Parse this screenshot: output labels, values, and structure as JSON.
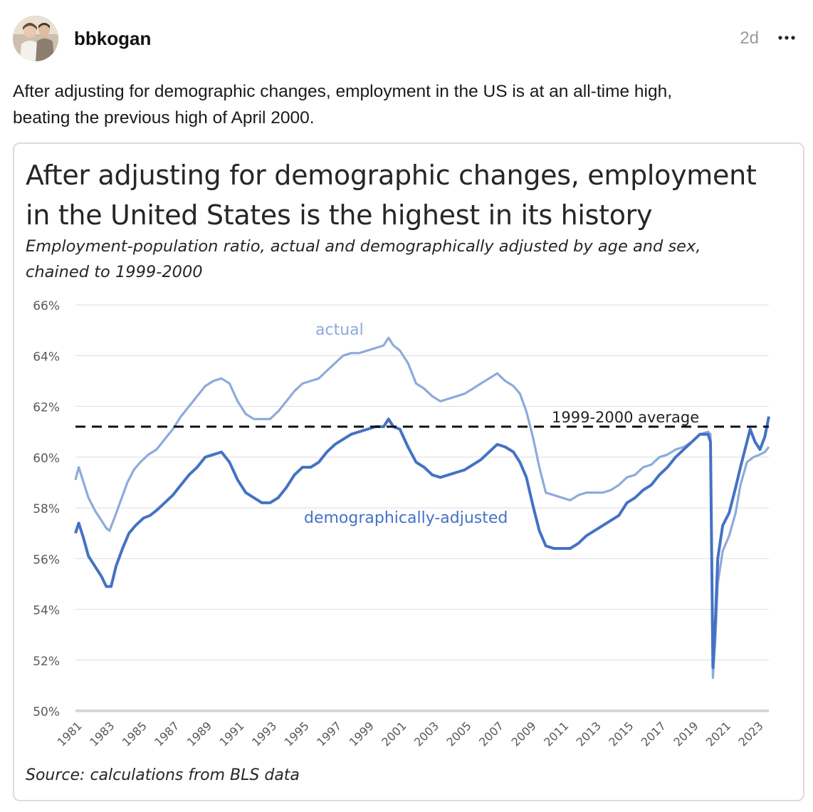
{
  "post": {
    "username": "bbkogan",
    "timestamp": "2d",
    "avatar_icon": "user-avatar-photo",
    "more_icon": "ellipsis-icon",
    "text_line1": "After adjusting for demographic changes, employment in the US is at an all-time high,",
    "text_line2": "beating the previous high of April 2000."
  },
  "chart_data": {
    "type": "line",
    "title_line1": "After adjusting for demographic changes, employment",
    "title_line2": "in the United States is the highest in its history",
    "subtitle_line1": "Employment-population ratio, actual and demographically adjusted by age and sex,",
    "subtitle_line2": "chained to 1999-2000",
    "source": "Source: calculations from BLS data",
    "ylim": [
      50,
      66
    ],
    "xlim": [
      1981,
      2023.75
    ],
    "y_ticks": [
      "66%",
      "64%",
      "62%",
      "60%",
      "58%",
      "56%",
      "54%",
      "52%",
      "50%"
    ],
    "y_tick_values": [
      66,
      64,
      62,
      60,
      58,
      56,
      54,
      52,
      50
    ],
    "x_ticks": [
      "1981",
      "1983",
      "1985",
      "1987",
      "1989",
      "1991",
      "1993",
      "1995",
      "1997",
      "1999",
      "2001",
      "2003",
      "2005",
      "2007",
      "2009",
      "2011",
      "2013",
      "2015",
      "2017",
      "2019",
      "2021",
      "2023"
    ],
    "grid": true,
    "reference_line": {
      "label": "1999-2000 average",
      "value": 61.2
    },
    "series": [
      {
        "name": "actual",
        "color": "#8eaadb",
        "points": [
          [
            1981.0,
            59.1
          ],
          [
            1981.2,
            59.6
          ],
          [
            1981.5,
            59.0
          ],
          [
            1981.8,
            58.4
          ],
          [
            1982.2,
            57.9
          ],
          [
            1982.6,
            57.5
          ],
          [
            1982.9,
            57.2
          ],
          [
            1983.1,
            57.1
          ],
          [
            1983.4,
            57.6
          ],
          [
            1983.8,
            58.3
          ],
          [
            1984.2,
            59.0
          ],
          [
            1984.6,
            59.5
          ],
          [
            1985.0,
            59.8
          ],
          [
            1985.5,
            60.1
          ],
          [
            1986.0,
            60.3
          ],
          [
            1986.5,
            60.7
          ],
          [
            1987.0,
            61.1
          ],
          [
            1987.5,
            61.6
          ],
          [
            1988.0,
            62.0
          ],
          [
            1988.5,
            62.4
          ],
          [
            1989.0,
            62.8
          ],
          [
            1989.5,
            63.0
          ],
          [
            1990.0,
            63.1
          ],
          [
            1990.5,
            62.9
          ],
          [
            1991.0,
            62.2
          ],
          [
            1991.5,
            61.7
          ],
          [
            1992.0,
            61.5
          ],
          [
            1992.5,
            61.5
          ],
          [
            1993.0,
            61.5
          ],
          [
            1993.5,
            61.8
          ],
          [
            1994.0,
            62.2
          ],
          [
            1994.5,
            62.6
          ],
          [
            1995.0,
            62.9
          ],
          [
            1995.5,
            63.0
          ],
          [
            1996.0,
            63.1
          ],
          [
            1996.5,
            63.4
          ],
          [
            1997.0,
            63.7
          ],
          [
            1997.5,
            64.0
          ],
          [
            1998.0,
            64.1
          ],
          [
            1998.5,
            64.1
          ],
          [
            1999.0,
            64.2
          ],
          [
            1999.5,
            64.3
          ],
          [
            2000.0,
            64.4
          ],
          [
            2000.3,
            64.7
          ],
          [
            2000.6,
            64.4
          ],
          [
            2001.0,
            64.2
          ],
          [
            2001.5,
            63.7
          ],
          [
            2002.0,
            62.9
          ],
          [
            2002.5,
            62.7
          ],
          [
            2003.0,
            62.4
          ],
          [
            2003.5,
            62.2
          ],
          [
            2004.0,
            62.3
          ],
          [
            2004.5,
            62.4
          ],
          [
            2005.0,
            62.5
          ],
          [
            2005.5,
            62.7
          ],
          [
            2006.0,
            62.9
          ],
          [
            2006.5,
            63.1
          ],
          [
            2007.0,
            63.3
          ],
          [
            2007.5,
            63.0
          ],
          [
            2008.0,
            62.8
          ],
          [
            2008.4,
            62.5
          ],
          [
            2008.8,
            61.8
          ],
          [
            2009.2,
            60.8
          ],
          [
            2009.6,
            59.6
          ],
          [
            2010.0,
            58.6
          ],
          [
            2010.5,
            58.5
          ],
          [
            2011.0,
            58.4
          ],
          [
            2011.5,
            58.3
          ],
          [
            2012.0,
            58.5
          ],
          [
            2012.5,
            58.6
          ],
          [
            2013.0,
            58.6
          ],
          [
            2013.5,
            58.6
          ],
          [
            2014.0,
            58.7
          ],
          [
            2014.5,
            58.9
          ],
          [
            2015.0,
            59.2
          ],
          [
            2015.5,
            59.3
          ],
          [
            2016.0,
            59.6
          ],
          [
            2016.5,
            59.7
          ],
          [
            2017.0,
            60.0
          ],
          [
            2017.5,
            60.1
          ],
          [
            2018.0,
            60.3
          ],
          [
            2018.5,
            60.4
          ],
          [
            2019.0,
            60.6
          ],
          [
            2019.5,
            60.9
          ],
          [
            2020.0,
            61.0
          ],
          [
            2020.15,
            60.9
          ],
          [
            2020.3,
            51.3
          ],
          [
            2020.45,
            52.8
          ],
          [
            2020.6,
            55.0
          ],
          [
            2020.9,
            56.3
          ],
          [
            2021.3,
            56.9
          ],
          [
            2021.7,
            57.8
          ],
          [
            2022.0,
            58.9
          ],
          [
            2022.4,
            59.8
          ],
          [
            2022.8,
            60.0
          ],
          [
            2023.2,
            60.1
          ],
          [
            2023.5,
            60.2
          ],
          [
            2023.75,
            60.4
          ]
        ]
      },
      {
        "name": "demographically-adjusted",
        "color": "#4472c4",
        "points": [
          [
            1981.0,
            57.0
          ],
          [
            1981.2,
            57.4
          ],
          [
            1981.5,
            56.8
          ],
          [
            1981.8,
            56.1
          ],
          [
            1982.2,
            55.7
          ],
          [
            1982.6,
            55.3
          ],
          [
            1982.9,
            54.9
          ],
          [
            1983.2,
            54.9
          ],
          [
            1983.5,
            55.7
          ],
          [
            1983.9,
            56.4
          ],
          [
            1984.3,
            57.0
          ],
          [
            1984.7,
            57.3
          ],
          [
            1985.2,
            57.6
          ],
          [
            1985.6,
            57.7
          ],
          [
            1986.0,
            57.9
          ],
          [
            1986.5,
            58.2
          ],
          [
            1987.0,
            58.5
          ],
          [
            1987.5,
            58.9
          ],
          [
            1988.0,
            59.3
          ],
          [
            1988.5,
            59.6
          ],
          [
            1989.0,
            60.0
          ],
          [
            1989.5,
            60.1
          ],
          [
            1990.0,
            60.2
          ],
          [
            1990.5,
            59.8
          ],
          [
            1991.0,
            59.1
          ],
          [
            1991.5,
            58.6
          ],
          [
            1992.0,
            58.4
          ],
          [
            1992.5,
            58.2
          ],
          [
            1993.0,
            58.2
          ],
          [
            1993.5,
            58.4
          ],
          [
            1994.0,
            58.8
          ],
          [
            1994.5,
            59.3
          ],
          [
            1995.0,
            59.6
          ],
          [
            1995.5,
            59.6
          ],
          [
            1996.0,
            59.8
          ],
          [
            1996.5,
            60.2
          ],
          [
            1997.0,
            60.5
          ],
          [
            1997.5,
            60.7
          ],
          [
            1998.0,
            60.9
          ],
          [
            1998.5,
            61.0
          ],
          [
            1999.0,
            61.1
          ],
          [
            1999.5,
            61.2
          ],
          [
            2000.0,
            61.2
          ],
          [
            2000.3,
            61.5
          ],
          [
            2000.6,
            61.2
          ],
          [
            2001.0,
            61.1
          ],
          [
            2001.5,
            60.4
          ],
          [
            2002.0,
            59.8
          ],
          [
            2002.5,
            59.6
          ],
          [
            2003.0,
            59.3
          ],
          [
            2003.5,
            59.2
          ],
          [
            2004.0,
            59.3
          ],
          [
            2004.5,
            59.4
          ],
          [
            2005.0,
            59.5
          ],
          [
            2005.5,
            59.7
          ],
          [
            2006.0,
            59.9
          ],
          [
            2006.5,
            60.2
          ],
          [
            2007.0,
            60.5
          ],
          [
            2007.5,
            60.4
          ],
          [
            2008.0,
            60.2
          ],
          [
            2008.4,
            59.8
          ],
          [
            2008.8,
            59.2
          ],
          [
            2009.2,
            58.1
          ],
          [
            2009.6,
            57.1
          ],
          [
            2010.0,
            56.5
          ],
          [
            2010.5,
            56.4
          ],
          [
            2011.0,
            56.4
          ],
          [
            2011.5,
            56.4
          ],
          [
            2012.0,
            56.6
          ],
          [
            2012.5,
            56.9
          ],
          [
            2013.0,
            57.1
          ],
          [
            2013.5,
            57.3
          ],
          [
            2014.0,
            57.5
          ],
          [
            2014.5,
            57.7
          ],
          [
            2015.0,
            58.2
          ],
          [
            2015.5,
            58.4
          ],
          [
            2016.0,
            58.7
          ],
          [
            2016.5,
            58.9
          ],
          [
            2017.0,
            59.3
          ],
          [
            2017.5,
            59.6
          ],
          [
            2018.0,
            60.0
          ],
          [
            2018.5,
            60.3
          ],
          [
            2019.0,
            60.6
          ],
          [
            2019.5,
            60.9
          ],
          [
            2020.0,
            60.9
          ],
          [
            2020.15,
            60.6
          ],
          [
            2020.3,
            51.7
          ],
          [
            2020.45,
            53.5
          ],
          [
            2020.6,
            56.0
          ],
          [
            2020.9,
            57.3
          ],
          [
            2021.3,
            57.8
          ],
          [
            2021.7,
            58.8
          ],
          [
            2022.0,
            59.6
          ],
          [
            2022.4,
            60.6
          ],
          [
            2022.6,
            61.1
          ],
          [
            2022.9,
            60.6
          ],
          [
            2023.2,
            60.3
          ],
          [
            2023.5,
            60.8
          ],
          [
            2023.75,
            61.6
          ]
        ]
      }
    ],
    "series_labels": [
      "actual",
      "demographically-adjusted"
    ]
  }
}
